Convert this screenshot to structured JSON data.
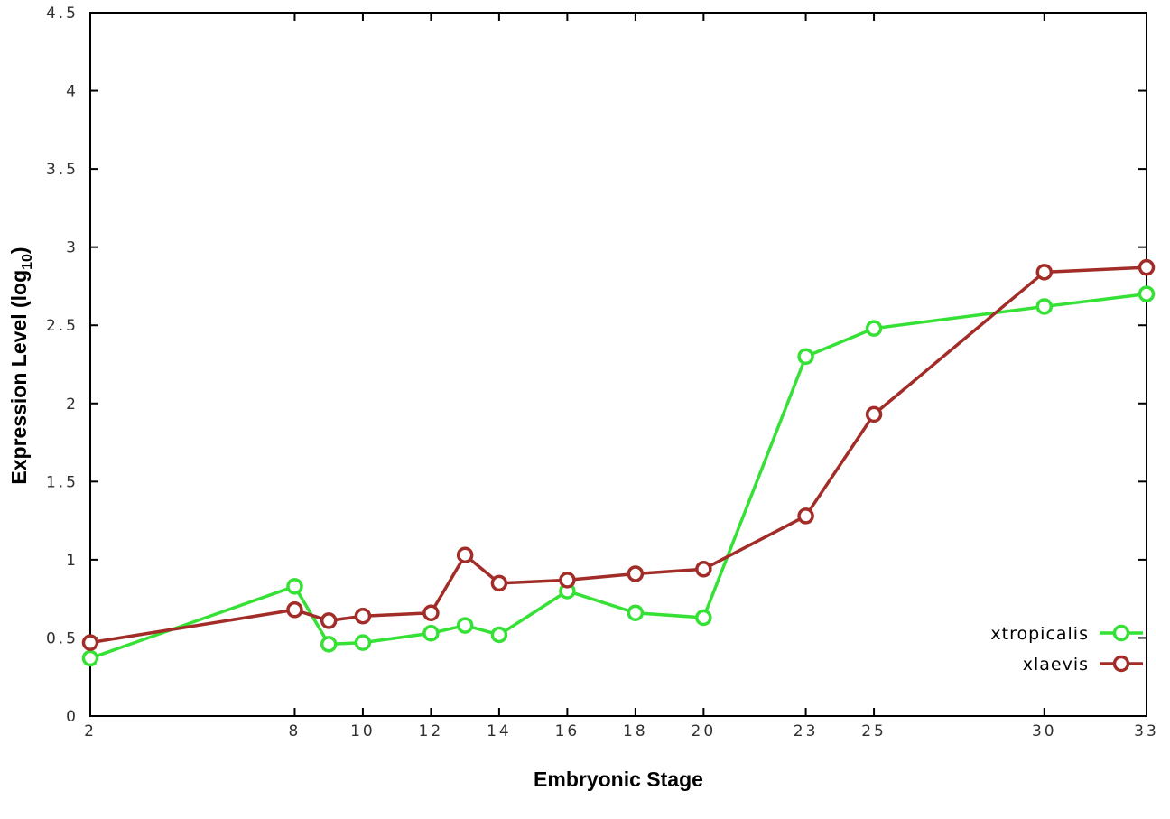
{
  "chart_data": {
    "type": "line",
    "title": "",
    "xlabel": "Embryonic Stage",
    "ylabel": "Expression Level (log10)",
    "ylabel_parts": {
      "main": "Expression Level (log",
      "sub": "10",
      "end": ")"
    },
    "xlim": [
      2,
      33
    ],
    "ylim": [
      0,
      4.5
    ],
    "xticks": [
      2,
      8,
      10,
      12,
      14,
      16,
      18,
      20,
      23,
      25,
      30,
      33
    ],
    "xtick_labels": [
      "2",
      "8",
      "10",
      "12",
      "14",
      "16",
      "18",
      "20",
      "23",
      "25",
      "30",
      "33"
    ],
    "yticks": [
      0,
      0.5,
      1,
      1.5,
      2,
      2.5,
      3,
      3.5,
      4,
      4.5
    ],
    "ytick_labels": [
      "0",
      "0.5",
      "1",
      "1.5",
      "2",
      "2.5",
      "3",
      "3.5",
      "4",
      "4.5"
    ],
    "x": [
      2,
      8,
      9,
      10,
      12,
      13,
      14,
      16,
      18,
      20,
      23,
      25,
      30,
      33
    ],
    "series": [
      {
        "name": "xtropicalis",
        "color": "#35e135",
        "values": [
          0.37,
          0.83,
          0.46,
          0.47,
          0.53,
          0.58,
          0.52,
          0.8,
          0.66,
          0.63,
          2.3,
          2.48,
          2.62,
          2.7
        ]
      },
      {
        "name": "xlaevis",
        "color": "#a22d28",
        "values": [
          0.47,
          0.68,
          0.61,
          0.64,
          0.66,
          1.03,
          0.85,
          0.87,
          0.91,
          0.94,
          1.28,
          1.93,
          2.84,
          2.87
        ]
      }
    ],
    "legend_position": "inside-bottom-right",
    "grid": false,
    "marker": "open-circle",
    "background": "#ffffff",
    "axis_color": "#000000",
    "tick_label_color": "#303030"
  }
}
